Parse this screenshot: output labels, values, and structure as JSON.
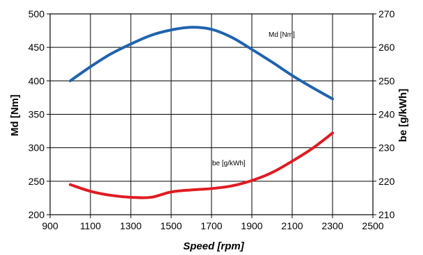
{
  "chart_data": {
    "type": "line",
    "xlabel": "Speed [rpm]",
    "ylabel_left": "Md [Nm]",
    "ylabel_right": "be [g/kWh]",
    "x_range": [
      900,
      2500
    ],
    "x_ticks": [
      900,
      1100,
      1300,
      1500,
      1700,
      1900,
      2100,
      2300,
      2500
    ],
    "y_left_range": [
      200,
      500
    ],
    "y_left_ticks": [
      200,
      250,
      300,
      350,
      400,
      450,
      500
    ],
    "y_right_range": [
      210,
      270
    ],
    "y_right_ticks": [
      210,
      220,
      230,
      240,
      250,
      260,
      270
    ],
    "grid": true,
    "series": [
      {
        "name": "Md [Nm]",
        "axis": "left",
        "color": "#1f63ad",
        "x": [
          1000,
          1100,
          1200,
          1300,
          1400,
          1500,
          1600,
          1700,
          1800,
          1900,
          2000,
          2100,
          2200,
          2300
        ],
        "y": [
          400,
          421,
          440,
          455,
          468,
          476,
          480,
          477,
          465,
          447,
          428,
          408,
          390,
          373
        ]
      },
      {
        "name": "be [g/kWh]",
        "axis": "right",
        "color": "#e01b22",
        "x": [
          1000,
          1100,
          1200,
          1300,
          1400,
          1500,
          1600,
          1700,
          1800,
          1900,
          2000,
          2100,
          2200,
          2300
        ],
        "y": [
          219,
          217,
          215.8,
          215.2,
          215.2,
          216.8,
          217.4,
          217.8,
          218.6,
          220.2,
          222.6,
          226,
          229.8,
          234.4
        ]
      }
    ]
  }
}
